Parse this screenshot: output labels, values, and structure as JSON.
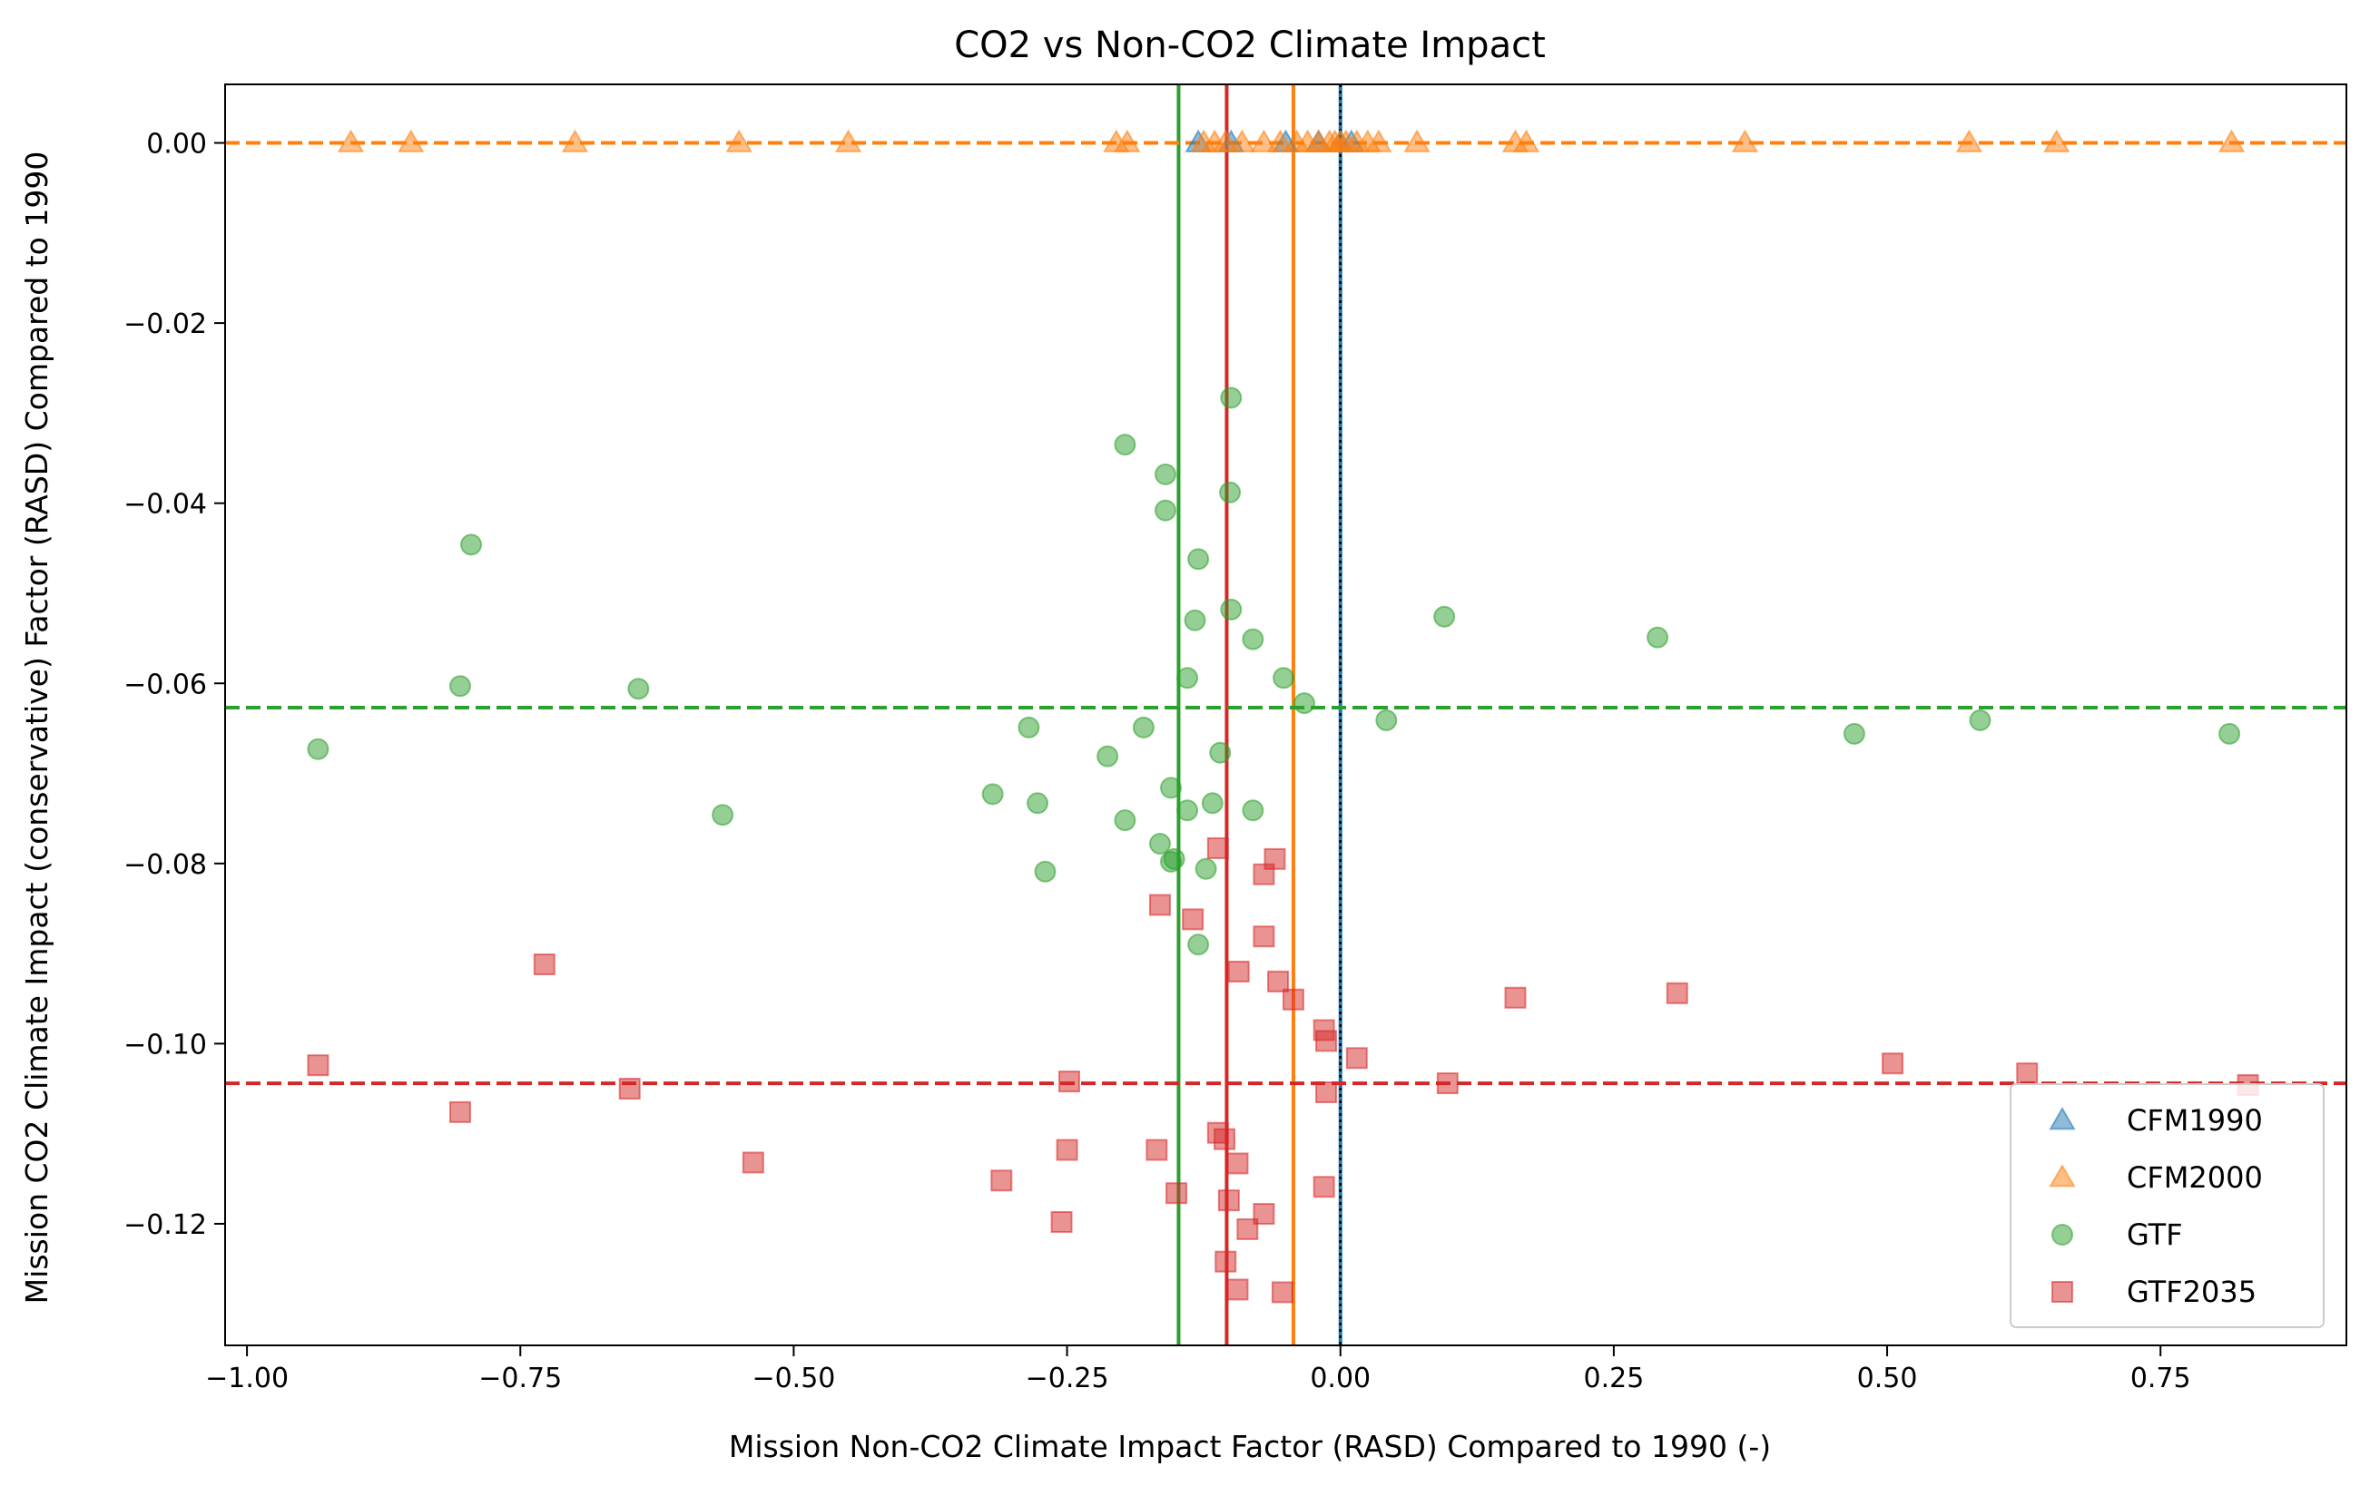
{
  "chart_data": {
    "type": "scatter",
    "title": "CO2 vs Non-CO2 Climate Impact",
    "xlabel": "Mission Non-CO2 Climate Impact Factor (RASD) Compared to 1990 (-)",
    "ylabel": "Mission CO2 Climate Impact (conservative) Factor (RASD) Compared to 1990",
    "xlim": [
      -1.02,
      0.92
    ],
    "ylim": [
      -0.1335,
      0.0065
    ],
    "xticks": [
      -1.0,
      -0.75,
      -0.5,
      -0.25,
      0.0,
      0.25,
      0.5,
      0.75
    ],
    "xtick_labels": [
      "−1.00",
      "−0.75",
      "−0.50",
      "−0.25",
      "0.00",
      "0.25",
      "0.50",
      "0.75"
    ],
    "yticks": [
      0.0,
      -0.02,
      -0.04,
      -0.06,
      -0.08,
      -0.1,
      -0.12
    ],
    "ytick_labels": [
      "0.00",
      "−0.02",
      "−0.04",
      "−0.06",
      "−0.08",
      "−0.10",
      "−0.12"
    ],
    "grid": false,
    "legend_position": "lower-right",
    "series": [
      {
        "name": "CFM1990",
        "marker": "triangle",
        "color": "#1f77b4",
        "points": [
          [
            -0.13,
            0.0
          ],
          [
            -0.1,
            0.0
          ],
          [
            -0.05,
            0.0
          ],
          [
            -0.02,
            0.0
          ],
          [
            0.0,
            0.0
          ],
          [
            0.01,
            0.0
          ]
        ]
      },
      {
        "name": "CFM2000",
        "marker": "triangle",
        "color": "#ff7f0e",
        "points": [
          [
            -0.905,
            0.0
          ],
          [
            -0.85,
            0.0
          ],
          [
            -0.7,
            0.0
          ],
          [
            -0.55,
            0.0
          ],
          [
            -0.45,
            0.0
          ],
          [
            -0.205,
            0.0
          ],
          [
            -0.195,
            0.0
          ],
          [
            -0.125,
            0.0
          ],
          [
            -0.115,
            0.0
          ],
          [
            -0.105,
            0.0
          ],
          [
            -0.09,
            0.0
          ],
          [
            -0.07,
            0.0
          ],
          [
            -0.055,
            0.0
          ],
          [
            -0.04,
            0.0
          ],
          [
            -0.03,
            0.0
          ],
          [
            -0.02,
            0.0
          ],
          [
            -0.01,
            0.0
          ],
          [
            -0.005,
            0.0
          ],
          [
            0.0,
            0.0
          ],
          [
            0.005,
            0.0
          ],
          [
            0.015,
            0.0
          ],
          [
            0.025,
            0.0
          ],
          [
            0.035,
            0.0
          ],
          [
            0.07,
            0.0
          ],
          [
            0.16,
            0.0
          ],
          [
            0.17,
            0.0
          ],
          [
            0.37,
            0.0
          ],
          [
            0.575,
            0.0
          ],
          [
            0.655,
            0.0
          ],
          [
            0.815,
            0.0
          ]
        ]
      },
      {
        "name": "GTF",
        "marker": "circle",
        "color": "#2ca02c",
        "points": [
          [
            -0.1,
            -0.0283
          ],
          [
            -0.197,
            -0.0335
          ],
          [
            -0.16,
            -0.0368
          ],
          [
            -0.101,
            -0.0388
          ],
          [
            -0.16,
            -0.0408
          ],
          [
            -0.795,
            -0.0446
          ],
          [
            -0.13,
            -0.0462
          ],
          [
            -0.1,
            -0.0518
          ],
          [
            -0.133,
            -0.053
          ],
          [
            0.095,
            -0.0526
          ],
          [
            -0.08,
            -0.0551
          ],
          [
            0.29,
            -0.0549
          ],
          [
            -0.14,
            -0.0594
          ],
          [
            -0.052,
            -0.0594
          ],
          [
            -0.805,
            -0.0603
          ],
          [
            -0.642,
            -0.0606
          ],
          [
            -0.033,
            -0.0622
          ],
          [
            0.042,
            -0.0641
          ],
          [
            0.585,
            -0.0641
          ],
          [
            0.47,
            -0.0656
          ],
          [
            0.813,
            -0.0656
          ],
          [
            -0.935,
            -0.0673
          ],
          [
            -0.285,
            -0.0649
          ],
          [
            -0.18,
            -0.0649
          ],
          [
            -0.11,
            -0.0677
          ],
          [
            -0.213,
            -0.0681
          ],
          [
            -0.155,
            -0.0716
          ],
          [
            -0.318,
            -0.0723
          ],
          [
            -0.277,
            -0.0733
          ],
          [
            -0.117,
            -0.0733
          ],
          [
            -0.14,
            -0.0741
          ],
          [
            -0.08,
            -0.0741
          ],
          [
            -0.565,
            -0.0746
          ],
          [
            -0.197,
            -0.0752
          ],
          [
            -0.165,
            -0.0778
          ],
          [
            -0.155,
            -0.0798
          ],
          [
            -0.152,
            -0.0795
          ],
          [
            -0.123,
            -0.0806
          ],
          [
            -0.27,
            -0.0809
          ],
          [
            -0.13,
            -0.089
          ]
        ]
      },
      {
        "name": "GTF2035",
        "marker": "square",
        "color": "#d62728",
        "points": [
          [
            -0.112,
            -0.0783
          ],
          [
            -0.06,
            -0.0795
          ],
          [
            -0.07,
            -0.0812
          ],
          [
            -0.165,
            -0.0846
          ],
          [
            -0.135,
            -0.0862
          ],
          [
            -0.07,
            -0.0881
          ],
          [
            -0.728,
            -0.0912
          ],
          [
            -0.093,
            -0.092
          ],
          [
            -0.057,
            -0.0931
          ],
          [
            -0.043,
            -0.0951
          ],
          [
            0.16,
            -0.0949
          ],
          [
            0.308,
            -0.0944
          ],
          [
            -0.015,
            -0.0985
          ],
          [
            -0.013,
            -0.0997
          ],
          [
            0.015,
            -0.1016
          ],
          [
            -0.935,
            -0.1024
          ],
          [
            0.505,
            -0.1022
          ],
          [
            0.628,
            -0.1033
          ],
          [
            -0.248,
            -0.1042
          ],
          [
            0.098,
            -0.1044
          ],
          [
            0.83,
            -0.1046
          ],
          [
            -0.65,
            -0.105
          ],
          [
            -0.013,
            -0.1054
          ],
          [
            -0.805,
            -0.1076
          ],
          [
            -0.112,
            -0.1099
          ],
          [
            -0.106,
            -0.1106
          ],
          [
            -0.25,
            -0.1118
          ],
          [
            -0.168,
            -0.1118
          ],
          [
            -0.094,
            -0.1133
          ],
          [
            -0.537,
            -0.1132
          ],
          [
            -0.31,
            -0.1152
          ],
          [
            -0.015,
            -0.1159
          ],
          [
            -0.15,
            -0.1166
          ],
          [
            -0.102,
            -0.1174
          ],
          [
            -0.255,
            -0.1198
          ],
          [
            -0.07,
            -0.1189
          ],
          [
            -0.085,
            -0.1206
          ],
          [
            -0.105,
            -0.1242
          ],
          [
            -0.094,
            -0.1273
          ],
          [
            -0.053,
            -0.1276
          ]
        ]
      }
    ],
    "reference_lines": [
      {
        "orientation": "vertical",
        "x": -0.148,
        "color": "#2ca02c",
        "style": "solid"
      },
      {
        "orientation": "vertical",
        "x": -0.104,
        "color": "#d62728",
        "style": "solid"
      },
      {
        "orientation": "vertical",
        "x": -0.043,
        "color": "#ff7f0e",
        "style": "solid"
      },
      {
        "orientation": "vertical",
        "x": 0.0,
        "color": "#1f77b4",
        "style": "solid"
      },
      {
        "orientation": "vertical",
        "x": 0.0,
        "color": "#000000",
        "style": "dotted"
      },
      {
        "orientation": "horizontal",
        "y": 0.0,
        "color": "#000000",
        "style": "dashed"
      },
      {
        "orientation": "horizontal",
        "y": 0.0,
        "color": "#ff7f0e",
        "style": "dashed"
      },
      {
        "orientation": "horizontal",
        "y": -0.0627,
        "color": "#2ca02c",
        "style": "dashed"
      },
      {
        "orientation": "horizontal",
        "y": -0.1044,
        "color": "#d62728",
        "style": "dashed"
      }
    ]
  }
}
